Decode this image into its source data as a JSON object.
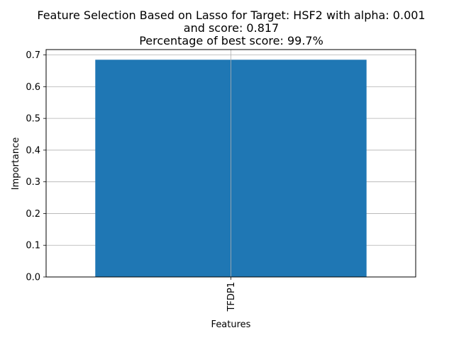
{
  "chart_data": {
    "type": "bar",
    "title_lines": [
      "Feature Selection Based on Lasso for Target: HSF2 with alpha: 0.001",
      "and score: 0.817",
      "Percentage of best score: 99.7%"
    ],
    "xlabel": "Features",
    "ylabel": "Importance",
    "categories": [
      "TFDP1"
    ],
    "values": [
      0.685
    ],
    "ylim": [
      0,
      0.717
    ],
    "yticks": [
      0.0,
      0.1,
      0.2,
      0.3,
      0.4,
      0.5,
      0.6,
      0.7
    ],
    "ytick_labels": [
      "0.0",
      "0.1",
      "0.2",
      "0.3",
      "0.4",
      "0.5",
      "0.6",
      "0.7"
    ],
    "grid": true,
    "bar_color": "#1f77b4",
    "grid_color": "#b0b0b0"
  }
}
